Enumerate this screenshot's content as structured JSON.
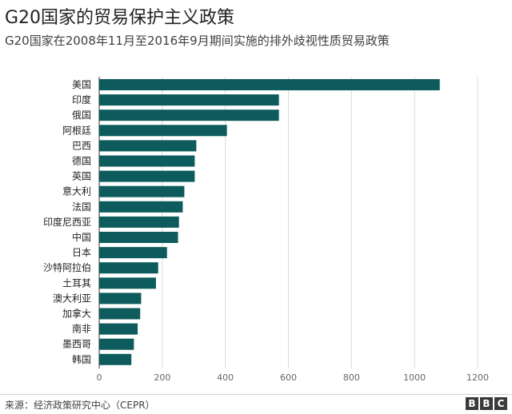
{
  "header": {
    "title": "G20国家的贸易保护主义政策",
    "subtitle": "G20国家在2008年11月至2016年9月期间实施的排外歧视性质贸易政策"
  },
  "footer": {
    "source": "来源：经济政策研究中心（CEPR）",
    "logo_letters": [
      "B",
      "B",
      "C"
    ]
  },
  "colors": {
    "bar": "#0d5b5c",
    "grid": "#d9d9d9",
    "axis": "#333333"
  },
  "chart_data": {
    "type": "bar",
    "orientation": "horizontal",
    "title": "G20国家的贸易保护主义政策",
    "subtitle": "G20国家在2008年11月至2016年9月期间实施的排外歧视性质贸易政策",
    "categories": [
      "美国",
      "印度",
      "俄国",
      "阿根廷",
      "巴西",
      "德国",
      "英国",
      "意大利",
      "法国",
      "印度尼西亚",
      "中国",
      "日本",
      "沙特阿拉伯",
      "土耳其",
      "澳大利亚",
      "加拿大",
      "南非",
      "墨西哥",
      "韩国"
    ],
    "values": [
      1080,
      570,
      570,
      405,
      308,
      303,
      303,
      270,
      265,
      253,
      250,
      215,
      187,
      180,
      133,
      130,
      122,
      110,
      102
    ],
    "xlim": [
      0,
      1200
    ],
    "xticks": [
      0,
      200,
      400,
      600,
      800,
      1000,
      1200
    ],
    "xlabel": "",
    "ylabel": "",
    "grid": true
  }
}
